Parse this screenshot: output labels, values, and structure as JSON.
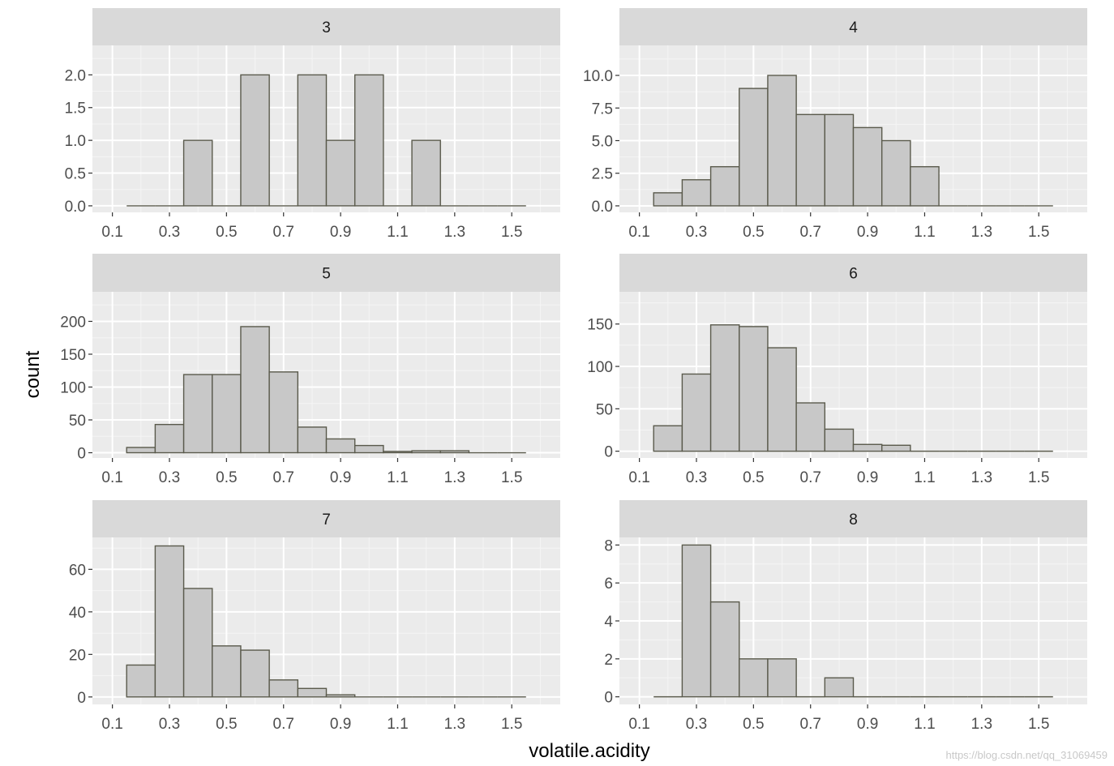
{
  "chart_data": {
    "type": "bar",
    "chart_kind": "faceted histogram",
    "xlabel": "volatile.acidity",
    "ylabel": "count",
    "x_ticks": [
      "0.1",
      "0.3",
      "0.5",
      "0.7",
      "0.9",
      "1.1",
      "1.3",
      "1.5"
    ],
    "xlim": [
      0.03,
      1.67
    ],
    "bin_edges": [
      0.15,
      0.25,
      0.35,
      0.45,
      0.55,
      0.65,
      0.75,
      0.85,
      0.95,
      1.05,
      1.15,
      1.25,
      1.35,
      1.45,
      1.55
    ],
    "bar_fill": "#c8c8c8",
    "bar_outline": "#5a5a4c",
    "panel_background": "#ebebeb",
    "strip_background": "#d9d9d9",
    "grid": true,
    "facets": [
      {
        "label": "3",
        "y_ticks": [
          "0.0",
          "0.5",
          "1.0",
          "1.5",
          "2.0"
        ],
        "ylim": [
          -0.1,
          2.45
        ],
        "values": [
          0,
          0,
          1,
          0,
          2,
          0,
          2,
          1,
          2,
          0,
          1,
          0,
          0,
          0
        ]
      },
      {
        "label": "4",
        "y_ticks": [
          "0.0",
          "2.5",
          "5.0",
          "7.5",
          "10.0"
        ],
        "ylim": [
          -0.5,
          12.3
        ],
        "values": [
          1,
          2,
          3,
          9,
          10,
          7,
          7,
          6,
          5,
          3,
          0,
          0,
          0,
          0
        ]
      },
      {
        "label": "5",
        "y_ticks": [
          "0",
          "50",
          "100",
          "150",
          "200"
        ],
        "ylim": [
          -8,
          245
        ],
        "values": [
          8,
          43,
          119,
          119,
          192,
          123,
          39,
          21,
          11,
          2,
          3,
          3,
          0,
          0
        ]
      },
      {
        "label": "6",
        "y_ticks": [
          "0",
          "50",
          "100",
          "150"
        ],
        "ylim": [
          -8,
          188
        ],
        "values": [
          30,
          91,
          149,
          147,
          122,
          57,
          26,
          8,
          7,
          0,
          0,
          0,
          0,
          0
        ]
      },
      {
        "label": "7",
        "y_ticks": [
          "0",
          "20",
          "40",
          "60"
        ],
        "ylim": [
          -3.5,
          75
        ],
        "values": [
          15,
          71,
          51,
          24,
          22,
          8,
          4,
          1,
          0,
          0,
          0,
          0,
          0,
          0
        ]
      },
      {
        "label": "8",
        "y_ticks": [
          "0",
          "2",
          "4",
          "6",
          "8"
        ],
        "ylim": [
          -0.4,
          8.4
        ],
        "values": [
          0,
          8,
          5,
          2,
          2,
          0,
          1,
          0,
          0,
          0,
          0,
          0,
          0,
          0
        ]
      }
    ]
  },
  "watermark": "https://blog.csdn.net/qq_31069459"
}
